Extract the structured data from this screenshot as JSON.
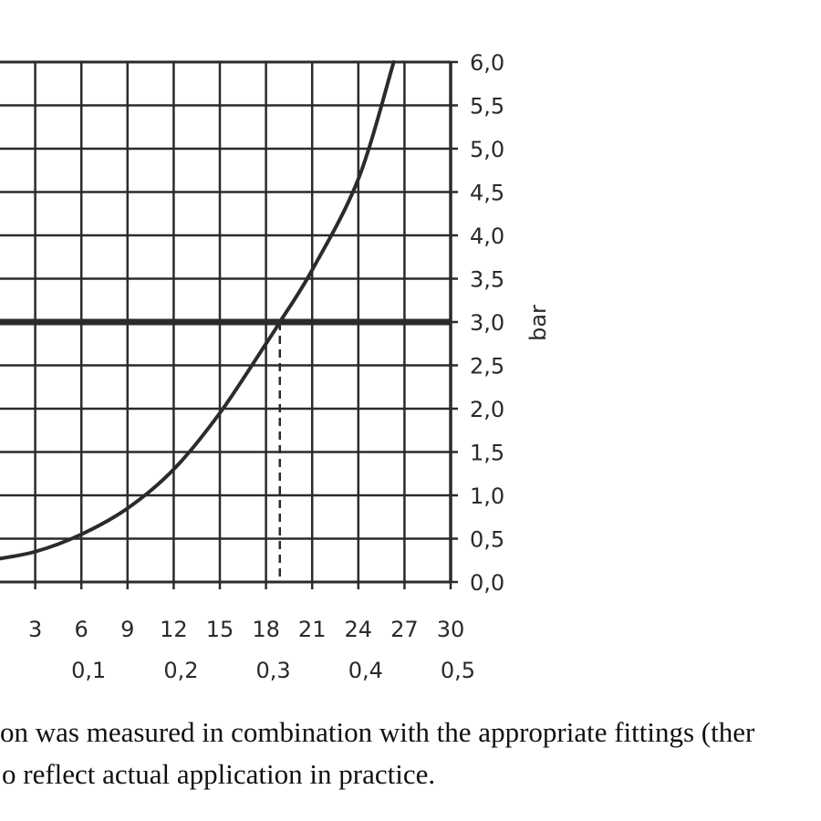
{
  "chart_data": {
    "type": "line",
    "xlabel": "",
    "ylabel": "bar",
    "xlim": [
      0,
      30
    ],
    "ylim": [
      0,
      6
    ],
    "grid": true,
    "x_ticks_primary": [
      "3",
      "6",
      "9",
      "12",
      "15",
      "18",
      "21",
      "24",
      "27",
      "30"
    ],
    "x_ticks_secondary": [
      "0,1",
      "0,2",
      "0,3",
      "0,4",
      "0,5"
    ],
    "y_ticks": [
      "0,0",
      "0,5",
      "1,0",
      "1,5",
      "2,0",
      "2,5",
      "3,0",
      "3,5",
      "4,0",
      "4,5",
      "5,0",
      "5,5",
      "6,0"
    ],
    "reference_line": {
      "y": 3.0,
      "x_intersect": 18.9
    },
    "series": [
      {
        "x": [
          0,
          3,
          6,
          9,
          12,
          15,
          18,
          18.9,
          21,
          24,
          26.3
        ],
        "values": [
          0.25,
          0.35,
          0.55,
          0.85,
          1.3,
          1.95,
          2.75,
          3.0,
          3.6,
          4.65,
          6.0
        ]
      }
    ]
  },
  "caption": {
    "line1": "on was measured in combination with the appropriate fittings (ther",
    "line2": "o reflect actual application in practice."
  }
}
